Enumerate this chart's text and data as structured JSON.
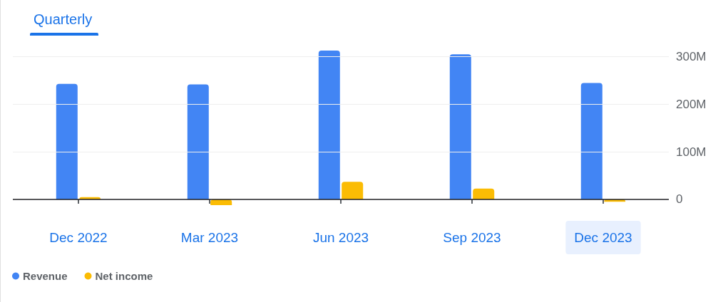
{
  "chart_data": {
    "type": "bar",
    "title": "Quarterly",
    "categories": [
      "Dec 2022",
      "Mar 2023",
      "Jun 2023",
      "Sep 2023",
      "Dec 2023"
    ],
    "series": [
      {
        "name": "Revenue",
        "color": "#4285f4",
        "values": [
          243,
          242,
          313,
          305,
          245
        ]
      },
      {
        "name": "Net income",
        "color": "#fbbc04",
        "values": [
          5,
          -12,
          37,
          23,
          -5
        ]
      }
    ],
    "yticks": [
      {
        "value": 0,
        "label": "0"
      },
      {
        "value": 100,
        "label": "100M"
      },
      {
        "value": 200,
        "label": "200M"
      },
      {
        "value": 300,
        "label": "300M"
      }
    ],
    "ylim": [
      -12,
      313
    ],
    "grid": "y",
    "legend": "bottom left"
  }
}
